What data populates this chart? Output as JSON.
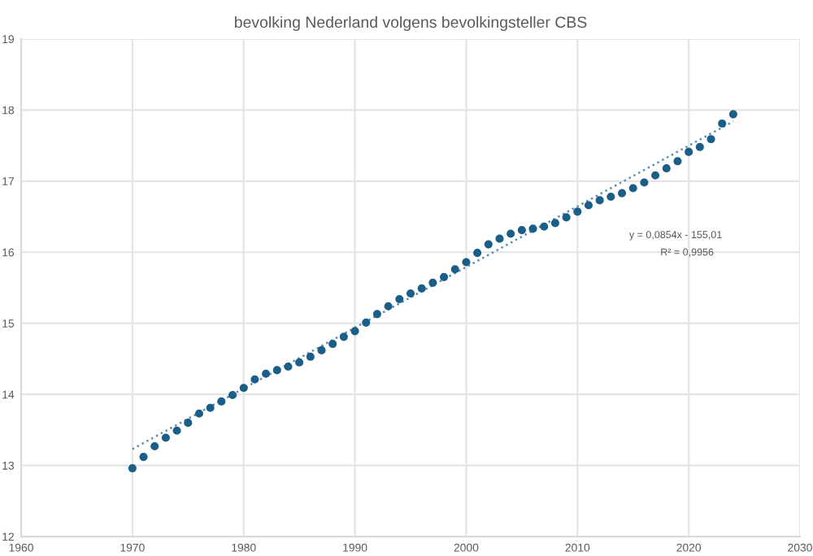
{
  "chart_data": {
    "type": "scatter",
    "title": "bevolking Nederland volgens bevolkingsteller CBS",
    "xlim": [
      1960,
      2030
    ],
    "xticks": [
      1960,
      1970,
      1980,
      1990,
      2000,
      2010,
      2020,
      2030
    ],
    "ylim": [
      12,
      19
    ],
    "yticks": [
      12,
      13,
      14,
      15,
      16,
      17,
      18,
      19
    ],
    "grid": true,
    "annotations": [
      "y = 0,0854x - 155,01",
      "R² = 0,9956"
    ],
    "series": [
      {
        "marker": "circle",
        "color": "#1b5e87",
        "x": [
          1970,
          1971,
          1972,
          1973,
          1974,
          1975,
          1976,
          1977,
          1978,
          1979,
          1980,
          1981,
          1982,
          1983,
          1984,
          1985,
          1986,
          1987,
          1988,
          1989,
          1990,
          1991,
          1992,
          1993,
          1994,
          1995,
          1996,
          1997,
          1998,
          1999,
          2000,
          2001,
          2002,
          2003,
          2004,
          2005,
          2006,
          2007,
          2008,
          2009,
          2010,
          2011,
          2012,
          2013,
          2014,
          2015,
          2016,
          2017,
          2018,
          2019,
          2020,
          2021,
          2022,
          2023,
          2024
        ],
        "values": [
          12.96,
          13.12,
          13.27,
          13.39,
          13.49,
          13.6,
          13.73,
          13.81,
          13.9,
          13.99,
          14.09,
          14.21,
          14.29,
          14.34,
          14.39,
          14.45,
          14.53,
          14.62,
          14.71,
          14.81,
          14.89,
          15.01,
          15.13,
          15.24,
          15.34,
          15.42,
          15.49,
          15.57,
          15.65,
          15.76,
          15.86,
          15.99,
          16.11,
          16.19,
          16.26,
          16.31,
          16.33,
          16.36,
          16.41,
          16.49,
          16.57,
          16.66,
          16.73,
          16.78,
          16.83,
          16.9,
          16.98,
          17.08,
          17.18,
          17.28,
          17.41,
          17.48,
          17.59,
          17.81,
          17.94
        ]
      },
      {
        "type": "line",
        "marker": "none",
        "color": "#5b8fb6",
        "line_style": "dotted",
        "x": [
          1970,
          2024
        ],
        "values": [
          13.23,
          17.84
        ]
      }
    ]
  }
}
